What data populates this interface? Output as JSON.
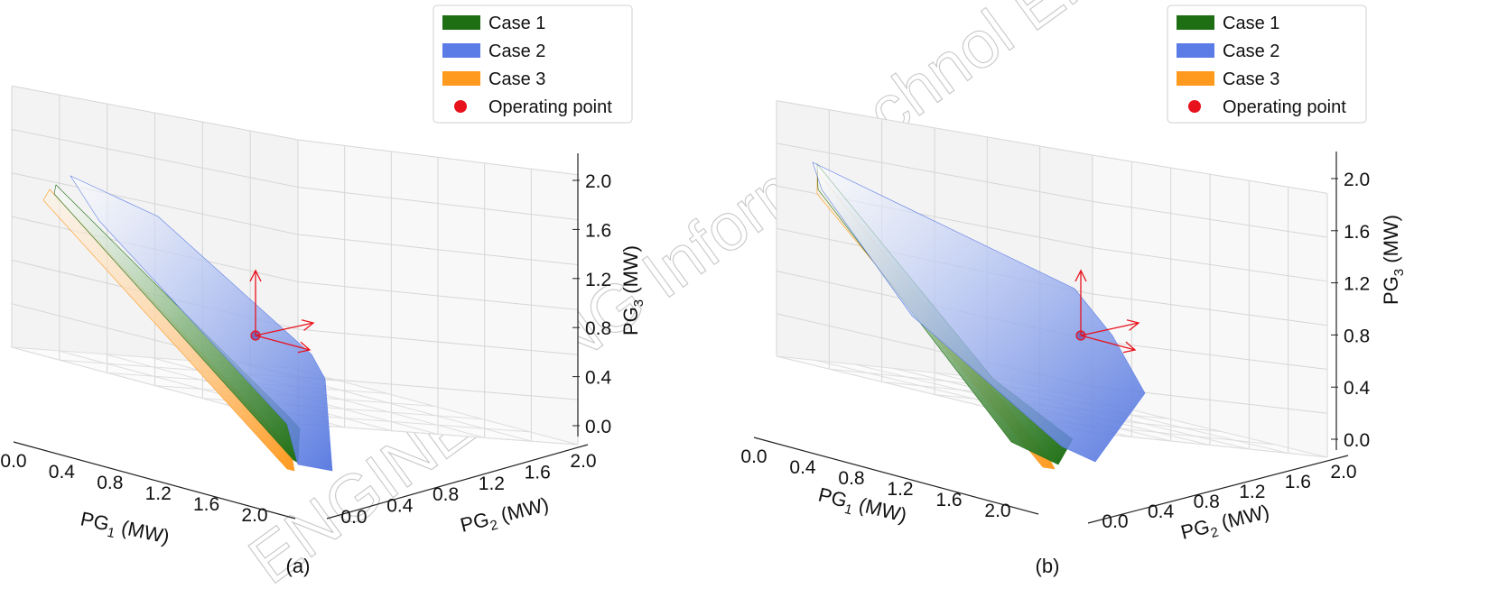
{
  "watermark": "ENGINEERING Inform Technol Electron Eng",
  "legend": [
    {
      "label": "Case 1",
      "color": "#1e6e14"
    },
    {
      "label": "Case 2",
      "color": "#5b7ce6"
    },
    {
      "label": "Case 3",
      "color": "#ff9a1f"
    },
    {
      "label": "Operating point",
      "color": "#e8121c",
      "marker": "dot"
    }
  ],
  "chart_data": [
    {
      "type": "surface3d",
      "panel_label": "(a)",
      "xlabel": "PG",
      "xlabel_sub": "1",
      "xlabel_unit": " (MW)",
      "ylabel": "PG",
      "ylabel_sub": "2",
      "ylabel_unit": " (MW)",
      "zlabel": "PG",
      "zlabel_sub": "3",
      "zlabel_unit": " (MW)",
      "x_ticks": [
        "0.0",
        "0.4",
        "0.8",
        "1.2",
        "1.6",
        "2.0"
      ],
      "y_ticks": [
        "0.0",
        "0.4",
        "0.8",
        "1.2",
        "1.6",
        "2.0"
      ],
      "z_ticks": [
        "0.0",
        "0.4",
        "0.8",
        "1.2",
        "1.6",
        "2.0"
      ],
      "xlim": [
        0,
        2.2
      ],
      "ylim": [
        0,
        2.2
      ],
      "zlim": [
        0,
        2.2
      ],
      "series": [
        {
          "name": "Case 1"
        },
        {
          "name": "Case 2"
        },
        {
          "name": "Case 3"
        }
      ],
      "operating_point": {
        "name": "Operating point"
      }
    },
    {
      "type": "surface3d",
      "panel_label": "(b)",
      "xlabel": "PG",
      "xlabel_sub": "1",
      "xlabel_unit": " (MW)",
      "ylabel": "PG",
      "ylabel_sub": "2",
      "ylabel_unit": " (MW)",
      "zlabel": "PG",
      "zlabel_sub": "3",
      "zlabel_unit": " (MW)",
      "x_ticks": [
        "0.0",
        "0.4",
        "0.8",
        "1.2",
        "1.6",
        "2.0"
      ],
      "y_ticks": [
        "0.0",
        "0.4",
        "0.8",
        "1.2",
        "1.6",
        "2.0"
      ],
      "z_ticks": [
        "0.0",
        "0.4",
        "0.8",
        "1.2",
        "1.6",
        "2.0"
      ],
      "xlim": [
        0,
        2.2
      ],
      "ylim": [
        0,
        2.2
      ],
      "zlim": [
        0,
        2.2
      ],
      "series": [
        {
          "name": "Case 1"
        },
        {
          "name": "Case 2"
        },
        {
          "name": "Case 3"
        }
      ],
      "operating_point": {
        "name": "Operating point"
      }
    }
  ]
}
